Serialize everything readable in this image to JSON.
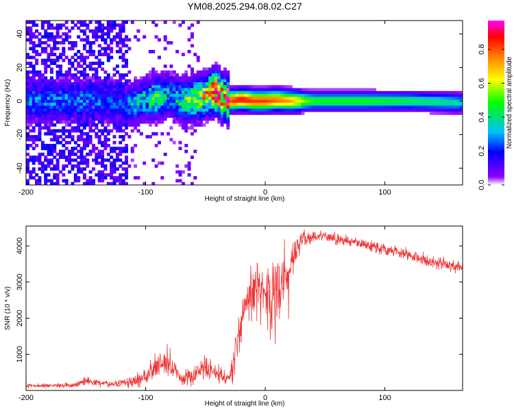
{
  "page": {
    "title": "YM08.2025.294.08.02.C27"
  },
  "chart_data": [
    {
      "type": "heatmap",
      "title": "YM08.2025.294.08.02.C27",
      "xlabel": "Height of straight line (km)",
      "ylabel": "Frequency (Hz)",
      "xlim": [
        -200,
        165
      ],
      "ylim": [
        -50,
        48
      ],
      "x_ticks": [
        -200,
        -100,
        0,
        100
      ],
      "x_tick_labels": [
        "-200",
        "-100",
        "0",
        "100"
      ],
      "y_ticks": [
        -40,
        -20,
        0,
        20,
        40
      ],
      "y_tick_labels": [
        "-40",
        "-20",
        "0",
        "20",
        "40"
      ],
      "colorbar": {
        "label": "Normalized spectral amplitude",
        "range": [
          0,
          0.97
        ],
        "ticks": [
          0,
          0.2,
          0.4,
          0.6,
          0.8
        ],
        "tick_labels": [
          "0.0",
          "0.2",
          "0.4",
          "0.6",
          "0.8"
        ],
        "colormap": [
          "#ffffff",
          "#8b00ff",
          "#0000ff",
          "#00bfff",
          "#00ff00",
          "#ffff00",
          "#ff7f00",
          "#ff0000",
          "#ff00ff"
        ]
      },
      "ridge": {
        "x": [
          -150,
          -120,
          -110,
          -100,
          -90,
          -80,
          -70,
          -60,
          -50,
          -42,
          -35,
          -28,
          -20,
          -10,
          0,
          10,
          20,
          40,
          80,
          120,
          160,
          165
        ],
        "frequency": [
          0,
          -1,
          -2,
          1,
          2,
          4,
          0,
          1,
          3,
          6,
          2,
          0,
          1,
          0,
          0,
          0.5,
          0,
          0,
          0,
          0,
          -1,
          -1
        ],
        "amplitude": [
          0.25,
          0.2,
          0.3,
          0.35,
          0.45,
          0.3,
          0.4,
          0.5,
          0.6,
          0.85,
          0.75,
          0.85,
          0.9,
          0.85,
          0.85,
          0.8,
          0.75,
          0.5,
          0.5,
          0.45,
          0.4,
          0.35
        ]
      },
      "noise_region": {
        "x_range": [
          -200,
          -115
        ],
        "frequency_range": [
          -50,
          48
        ],
        "amplitude": 0.15
      }
    },
    {
      "type": "line",
      "xlabel": "Height of straight line (km)",
      "ylabel": "SNR (10 * v/v)",
      "xlim": [
        -200,
        165
      ],
      "ylim": [
        0,
        4550
      ],
      "x_ticks": [
        -200,
        -100,
        0,
        100
      ],
      "x_tick_labels": [
        "-200",
        "-100",
        "0",
        "100"
      ],
      "y_ticks": [
        1000,
        2000,
        3000,
        4000
      ],
      "y_tick_labels": [
        "1000",
        "2000",
        "3000",
        "4000"
      ],
      "series": [
        {
          "name": "SNR",
          "color": "#ee3333",
          "x": [
            -200,
            -180,
            -160,
            -148,
            -130,
            -110,
            -100,
            -90,
            -80,
            -70,
            -60,
            -50,
            -40,
            -30,
            -25,
            -20,
            -15,
            -10,
            -5,
            0,
            5,
            10,
            15,
            20,
            25,
            30,
            40,
            50,
            60,
            80,
            100,
            120,
            140,
            165
          ],
          "y": [
            130,
            140,
            150,
            260,
            170,
            260,
            430,
            680,
            720,
            300,
            400,
            650,
            450,
            320,
            1150,
            2000,
            2550,
            2750,
            2900,
            2850,
            2500,
            2600,
            3100,
            3350,
            3850,
            4150,
            4280,
            4250,
            4200,
            4050,
            3900,
            3750,
            3550,
            3380
          ],
          "noise": [
            40,
            45,
            50,
            80,
            60,
            120,
            200,
            300,
            280,
            120,
            200,
            280,
            200,
            150,
            500,
            450,
            500,
            600,
            650,
            600,
            700,
            900,
            600,
            400,
            300,
            200,
            130,
            120,
            120,
            120,
            120,
            130,
            130,
            130
          ]
        }
      ]
    }
  ]
}
